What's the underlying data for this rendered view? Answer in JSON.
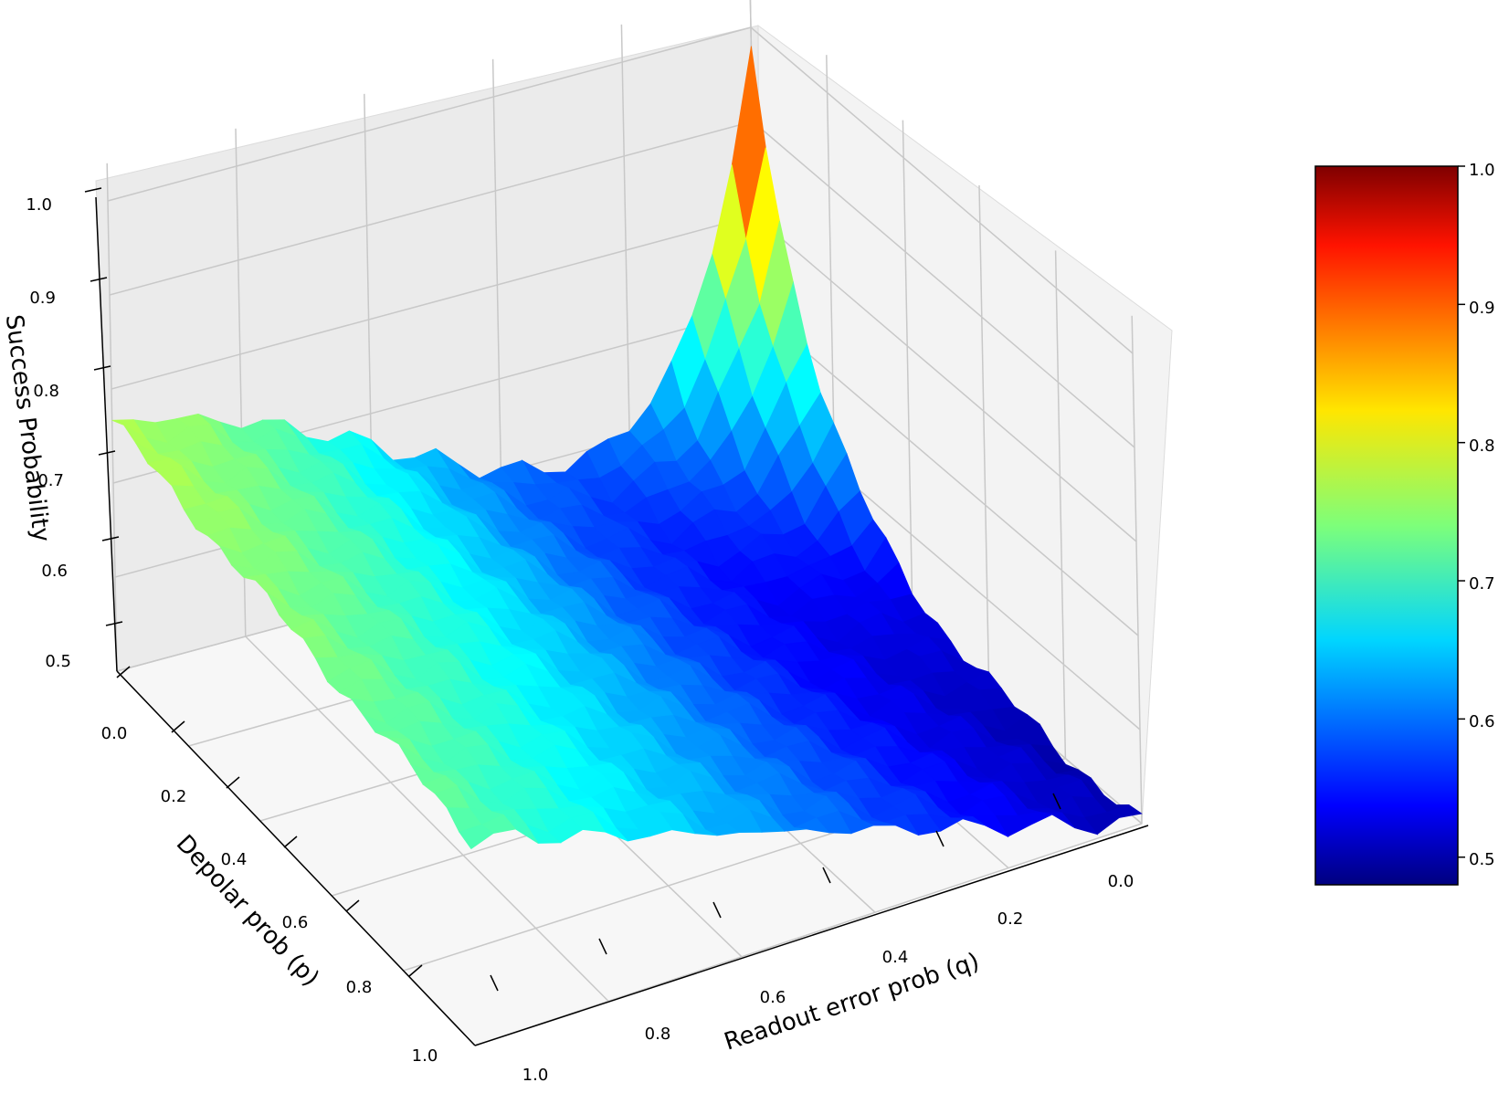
{
  "chart_data": {
    "type": "surface",
    "title": "",
    "xlabel": "Readout error prob (q)",
    "ylabel": "Depolar prob (p)",
    "zlabel": "Success Probability",
    "xlim": [
      0.0,
      1.0
    ],
    "ylim": [
      0.0,
      1.0
    ],
    "zlim": [
      0.5,
      1.0
    ],
    "x_ticks": [
      "0.0",
      "0.2",
      "0.4",
      "0.6",
      "0.8",
      "1.0"
    ],
    "y_ticks": [
      "0.0",
      "0.2",
      "0.4",
      "0.6",
      "0.8",
      "1.0"
    ],
    "z_ticks": [
      "0.5",
      "0.6",
      "0.7",
      "0.8",
      "0.9",
      "1.0"
    ],
    "colorbar": {
      "colormap": "jet",
      "range": [
        0.48,
        1.0
      ],
      "ticks": [
        "0.5",
        "0.6",
        "0.7",
        "0.8",
        "0.9",
        "1.0"
      ]
    },
    "grid": true,
    "surface_corners": [
      {
        "q": 0.0,
        "p": 0.0,
        "success": 0.98
      },
      {
        "q": 0.0,
        "p": 1.0,
        "success": 0.5
      },
      {
        "q": 1.0,
        "p": 0.0,
        "success": 0.78
      },
      {
        "q": 1.0,
        "p": 1.0,
        "success": 0.74
      }
    ],
    "surface_profile": {
      "description_values_q0": [
        0.98,
        0.72,
        0.62,
        0.56,
        0.52,
        0.5
      ],
      "description_values_p0": [
        0.98,
        0.72,
        0.65,
        0.7,
        0.75,
        0.78
      ],
      "description_values_q1": [
        0.78,
        0.76,
        0.75,
        0.74,
        0.74,
        0.74
      ]
    }
  }
}
